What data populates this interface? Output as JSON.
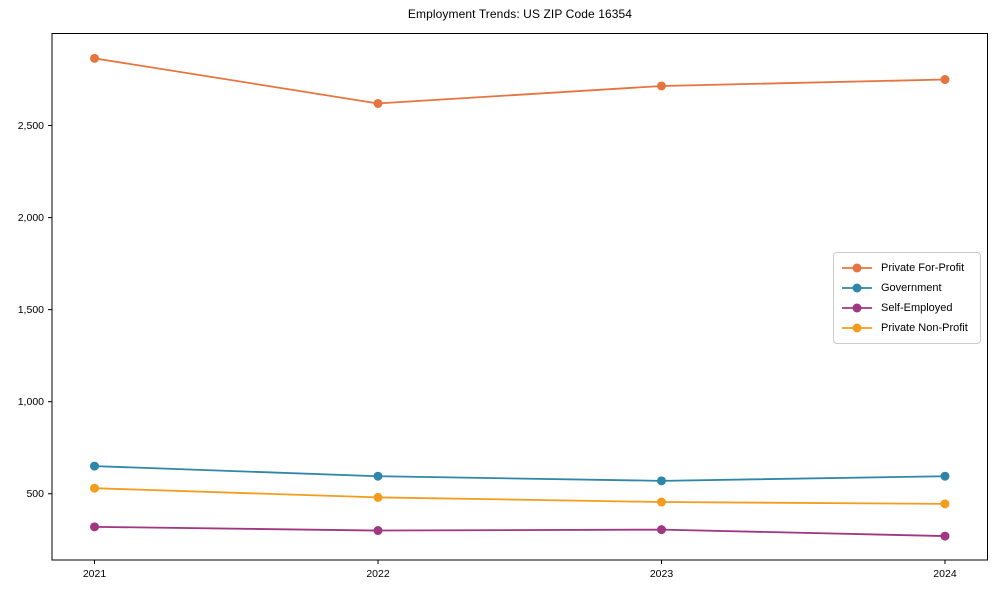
{
  "chart_data": {
    "type": "line",
    "title": "Employment Trends: US ZIP Code 16354",
    "x": [
      2021,
      2022,
      2023,
      2024
    ],
    "x_tick_labels": [
      "2021",
      "2022",
      "2023",
      "2024"
    ],
    "series": [
      {
        "name": "Private For-Profit",
        "color": "#e6743f",
        "values": [
          2865,
          2620,
          2715,
          2750
        ]
      },
      {
        "name": "Government",
        "color": "#2e87a8",
        "values": [
          650,
          595,
          570,
          595
        ]
      },
      {
        "name": "Self-Employed",
        "color": "#a13682",
        "values": [
          320,
          300,
          305,
          270
        ]
      },
      {
        "name": "Private Non-Profit",
        "color": "#f49c1e",
        "values": [
          530,
          480,
          455,
          445
        ]
      }
    ],
    "xlabel": "",
    "ylabel": "",
    "xlim": [
      2020.85,
      2024.15
    ],
    "ylim": [
      140,
      3000
    ],
    "yticks": [
      {
        "value": 500,
        "label": "500"
      },
      {
        "value": 1000,
        "label": "1,000"
      },
      {
        "value": 1500,
        "label": "1,500"
      },
      {
        "value": 2000,
        "label": "2,000"
      },
      {
        "value": 2500,
        "label": "2,500"
      }
    ],
    "grid": false,
    "legend_position": "center right",
    "marker": "circle",
    "line_width": 1.8,
    "marker_radius": 4.5,
    "frame_color": "#000000",
    "background": "#ffffff"
  }
}
